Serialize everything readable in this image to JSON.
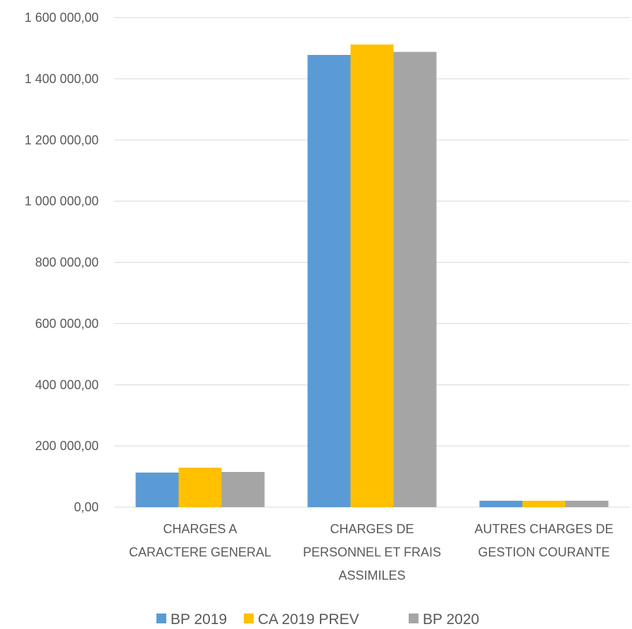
{
  "chart_data": {
    "type": "bar",
    "title": "",
    "xlabel": "",
    "ylabel": "",
    "categories": [
      [
        "CHARGES A",
        "CARACTERE GENERAL"
      ],
      [
        "CHARGES DE",
        "PERSONNEL ET FRAIS",
        "ASSIMILES"
      ],
      [
        "AUTRES CHARGES DE",
        "GESTION COURANTE"
      ]
    ],
    "series": [
      {
        "name": "BP 2019",
        "color": "#5B9BD5",
        "values": [
          113000,
          1478000,
          21000
        ]
      },
      {
        "name": "CA 2019 PREV",
        "color": "#FFC000",
        "values": [
          129000,
          1512000,
          21000
        ]
      },
      {
        "name": "BP 2020",
        "color": "#A5A5A5",
        "values": [
          115000,
          1488000,
          21000
        ]
      }
    ],
    "ylim": [
      0,
      1600000
    ],
    "yticks": [
      0,
      200000,
      400000,
      600000,
      800000,
      1000000,
      1200000,
      1400000,
      1600000
    ],
    "ytick_labels": [
      "0,00",
      "200 000,00",
      "400 000,00",
      "600 000,00",
      "800 000,00",
      "1 000 000,00",
      "1 200 000,00",
      "1 400 000,00",
      "1 600 000,00"
    ],
    "grid": true,
    "legend_position": "bottom",
    "gridline_color": "#D9D9D9"
  }
}
